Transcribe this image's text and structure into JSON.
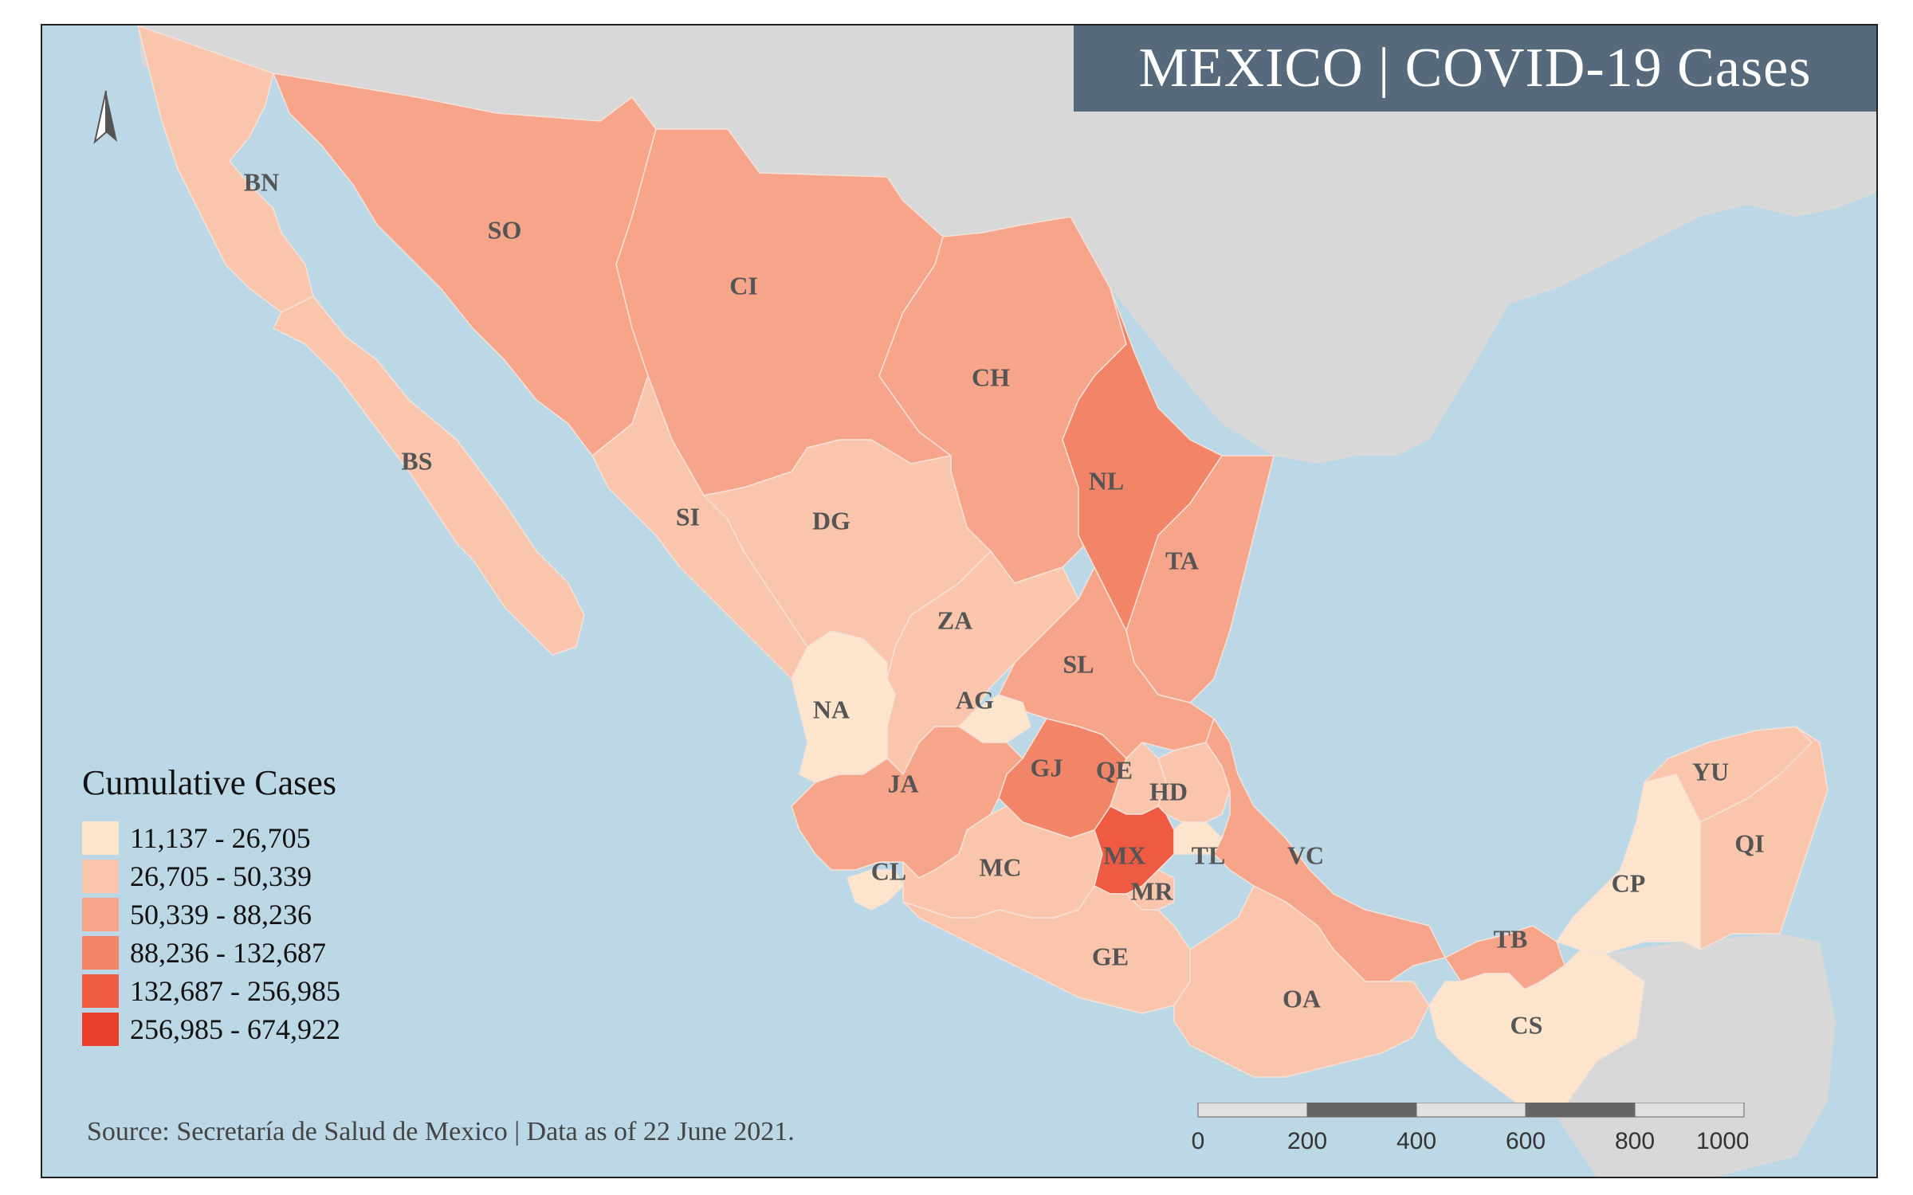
{
  "title": "MEXICO | COVID-19 Cases",
  "source": "Source: Secretaría de Salud de Mexico | Data as of 22 June 2021.",
  "legend": {
    "title": "Cumulative Cases",
    "classes": [
      {
        "label": "11,137 - 26,705",
        "color": "#fde4cc"
      },
      {
        "label": "26,705 - 50,339",
        "color": "#f9c5ad"
      },
      {
        "label": "50,339 - 88,236",
        "color": "#f6a48a"
      },
      {
        "label": "88,236 - 132,687",
        "color": "#f28468"
      },
      {
        "label": "132,687 - 256,985",
        "color": "#ee5a42"
      },
      {
        "label": "256,985 - 674,922",
        "color": "#e8402a"
      }
    ]
  },
  "scale_bar": {
    "ticks": [
      "0",
      "200",
      "400",
      "600",
      "800",
      "1000 km"
    ]
  },
  "colors": {
    "ocean": "#bcd7e6",
    "neighbor_land": "#d8d8d8",
    "title_bg": "#576a7c",
    "state_border": "#f4e2d8",
    "label": "#555555"
  },
  "states": [
    {
      "abbr": "BN",
      "class": 1
    },
    {
      "abbr": "BS",
      "class": 1
    },
    {
      "abbr": "SO",
      "class": 2
    },
    {
      "abbr": "CI",
      "class": 2
    },
    {
      "abbr": "CH",
      "class": 2
    },
    {
      "abbr": "NL",
      "class": 3
    },
    {
      "abbr": "TA",
      "class": 2
    },
    {
      "abbr": "SI",
      "class": 1
    },
    {
      "abbr": "DG",
      "class": 1
    },
    {
      "abbr": "ZA",
      "class": 1
    },
    {
      "abbr": "SL",
      "class": 2
    },
    {
      "abbr": "NA",
      "class": 0
    },
    {
      "abbr": "AG",
      "class": 0
    },
    {
      "abbr": "JA",
      "class": 2
    },
    {
      "abbr": "GJ",
      "class": 3
    },
    {
      "abbr": "QE",
      "class": 1
    },
    {
      "abbr": "HD",
      "class": 1
    },
    {
      "abbr": "CL",
      "class": 0
    },
    {
      "abbr": "MC",
      "class": 1
    },
    {
      "abbr": "MX",
      "class": 4
    },
    {
      "abbr": "TL",
      "class": 0
    },
    {
      "abbr": "MR",
      "class": 1
    },
    {
      "abbr": "VC",
      "class": 2
    },
    {
      "abbr": "GE",
      "class": 1
    },
    {
      "abbr": "OA",
      "class": 1
    },
    {
      "abbr": "TB",
      "class": 2
    },
    {
      "abbr": "CP",
      "class": 0
    },
    {
      "abbr": "YU",
      "class": 1
    },
    {
      "abbr": "QI",
      "class": 1
    },
    {
      "abbr": "CS",
      "class": 0
    }
  ]
}
